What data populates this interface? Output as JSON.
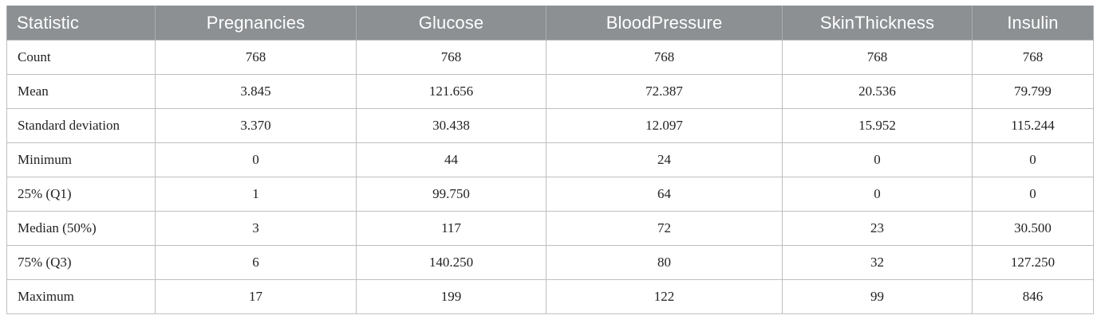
{
  "table": {
    "headers": [
      "Statistic",
      "Pregnancies",
      "Glucose",
      "BloodPressure",
      "SkinThickness",
      "Insulin"
    ],
    "rows": [
      [
        "Count",
        "768",
        "768",
        "768",
        "768",
        "768"
      ],
      [
        "Mean",
        "3.845",
        "121.656",
        "72.387",
        "20.536",
        "79.799"
      ],
      [
        "Standard deviation",
        "3.370",
        "30.438",
        "12.097",
        "15.952",
        "115.244"
      ],
      [
        "Minimum",
        "0",
        "44",
        "24",
        "0",
        "0"
      ],
      [
        "25% (Q1)",
        "1",
        "99.750",
        "64",
        "0",
        "0"
      ],
      [
        "Median (50%)",
        "3",
        "117",
        "72",
        "23",
        "30.500"
      ],
      [
        "75% (Q3)",
        "6",
        "140.250",
        "80",
        "32",
        "127.250"
      ],
      [
        "Maximum",
        "17",
        "199",
        "122",
        "99",
        "846"
      ]
    ]
  }
}
